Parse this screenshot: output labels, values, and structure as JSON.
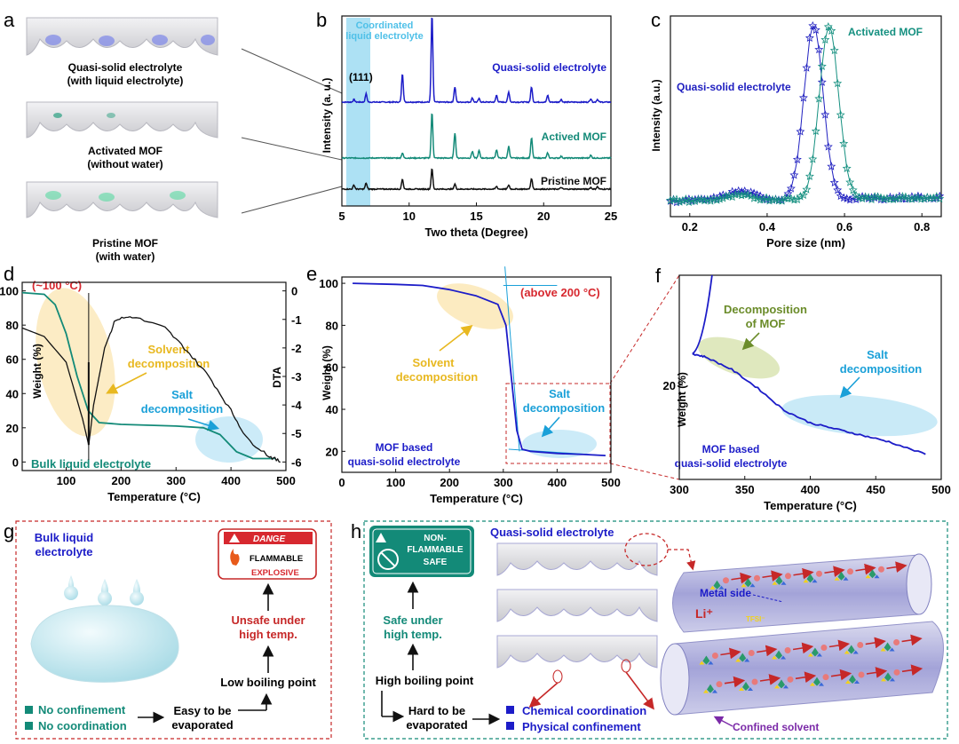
{
  "panels": {
    "a": {
      "letter": "a",
      "labels": [
        [
          "Quasi-solid electrolyte",
          "(with liquid electrolyte)"
        ],
        [
          "Activated MOF",
          "(without water)"
        ],
        [
          "Pristine MOF",
          "(with water)"
        ]
      ]
    },
    "b": {
      "letter": "b",
      "coord_label": [
        "Coordinated",
        "liquid electrolyte"
      ],
      "peak_label": "(111)"
    },
    "c": {
      "letter": "c"
    },
    "d": {
      "letter": "d",
      "temp_callout": "(~100 °C)",
      "solvent": [
        "Solvent",
        "decomposition"
      ],
      "salt": [
        "Salt",
        "decomposition"
      ],
      "bulk": "Bulk liquid electrolyte"
    },
    "e": {
      "letter": "e",
      "temp_callout": "(above 200 °C)",
      "solvent": [
        "Solvent",
        "decomposition"
      ],
      "salt": [
        "Salt",
        "decomposition"
      ],
      "mof": [
        "MOF based",
        "quasi-solid electrolyte"
      ]
    },
    "f": {
      "letter": "f",
      "mof_dec": [
        "Decomposition",
        "of MOF"
      ],
      "salt": [
        "Salt",
        "decomposition"
      ],
      "mof": [
        "MOF based",
        "quasi-solid electrolyte"
      ]
    },
    "g": {
      "letter": "g",
      "title": [
        "Bulk liquid",
        "electrolyte"
      ],
      "danger": "DANGE",
      "flammable": "FLAMMABLE",
      "explosive": "EXPLOSIVE",
      "unsafe": [
        "Unsafe under",
        "high temp."
      ],
      "low_bp": "Low boiling point",
      "easy": [
        "Easy to be",
        "evaporated"
      ],
      "bullets": [
        "No confinement",
        "No coordination"
      ]
    },
    "h": {
      "letter": "h",
      "badge": [
        "NON-",
        "FLAMMABLE",
        "SAFE"
      ],
      "safe": [
        "Safe under",
        "high temp."
      ],
      "high_bp": "High boiling point",
      "hard": [
        "Hard to be",
        "evaporated"
      ],
      "bullets": [
        "Chemical coordination",
        "Physical confinement"
      ],
      "title": "Quasi-solid electrolyte",
      "metal": "Metal side",
      "li": "Li⁺",
      "tfsi": "TFSI⁻",
      "confined": "Confined solvent"
    }
  },
  "chart_data": [
    {
      "id": "b",
      "type": "line",
      "title": "",
      "xlabel": "Two theta (Degree)",
      "ylabel": "Intensity (a. u.)",
      "xlim": [
        5,
        25
      ],
      "xticks": [
        5,
        10,
        15,
        20,
        25
      ],
      "series": [
        {
          "name": "Quasi-solid electrolyte",
          "color": "#1c1cc8",
          "peaks": [
            [
              5.9,
              0.08
            ],
            [
              6.8,
              0.25
            ],
            [
              9.5,
              0.85
            ],
            [
              11.7,
              2.6
            ],
            [
              13.4,
              0.45
            ],
            [
              14.7,
              0.12
            ],
            [
              15.2,
              0.1
            ],
            [
              16.5,
              0.2
            ],
            [
              17.4,
              0.3
            ],
            [
              19.1,
              0.45
            ],
            [
              20.3,
              0.2
            ],
            [
              21.3,
              0.08
            ],
            [
              23.5,
              0.1
            ],
            [
              24.0,
              0.08
            ]
          ]
        },
        {
          "name": "Actived MOF",
          "color": "#138a78",
          "peaks": [
            [
              9.5,
              0.15
            ],
            [
              11.7,
              1.35
            ],
            [
              13.4,
              0.75
            ],
            [
              14.7,
              0.2
            ],
            [
              15.2,
              0.22
            ],
            [
              16.5,
              0.25
            ],
            [
              17.4,
              0.35
            ],
            [
              19.1,
              0.6
            ],
            [
              20.3,
              0.15
            ],
            [
              21.3,
              0.05
            ],
            [
              23.5,
              0.08
            ]
          ]
        },
        {
          "name": "Pristine MOF",
          "color": "#111111",
          "peaks": [
            [
              5.9,
              0.12
            ],
            [
              6.8,
              0.18
            ],
            [
              9.5,
              0.3
            ],
            [
              11.7,
              0.6
            ],
            [
              13.4,
              0.15
            ],
            [
              16.5,
              0.08
            ],
            [
              17.4,
              0.12
            ],
            [
              19.1,
              0.32
            ],
            [
              21.3,
              0.05
            ],
            [
              23.5,
              0.05
            ],
            [
              24.0,
              0.07
            ]
          ]
        }
      ]
    },
    {
      "id": "c",
      "type": "line",
      "title": "",
      "xlabel": "Pore size (nm)",
      "ylabel": "Intensity (a.u.)",
      "xlim": [
        0.15,
        0.85
      ],
      "xticks": [
        0.2,
        0.4,
        0.6,
        0.8
      ],
      "series": [
        {
          "name": "Quasi-solid electrolyte",
          "color": "#2020c0",
          "peak": 0.52
        },
        {
          "name": "Activated MOF",
          "color": "#159080",
          "peak": 0.56
        }
      ]
    },
    {
      "id": "d",
      "type": "line",
      "title": "",
      "xlabel": "Temperature (°C)",
      "ylabel": "Weight (%)",
      "y2label": "DTA",
      "xlim": [
        20,
        500
      ],
      "xticks": [
        100,
        200,
        300,
        400,
        500
      ],
      "ylim": [
        -5,
        105
      ],
      "yticks": [
        0,
        20,
        40,
        60,
        80,
        100
      ],
      "y2lim": [
        -6.3,
        0.3
      ],
      "y2ticks": [
        0,
        -1,
        -2,
        -3,
        -4,
        -5,
        -6
      ],
      "series": [
        {
          "name": "Weight",
          "color": "#138a78",
          "x": [
            20,
            60,
            80,
            100,
            120,
            140,
            160,
            200,
            300,
            350,
            380,
            410,
            440,
            480
          ],
          "y": [
            99,
            98,
            92,
            75,
            50,
            30,
            23,
            22,
            21,
            20,
            16,
            6,
            2,
            2
          ]
        },
        {
          "name": "DTA",
          "color": "#111111",
          "x": [
            20,
            60,
            100,
            130,
            141,
            150,
            170,
            190,
            220,
            280,
            320,
            360,
            400,
            430,
            470,
            490
          ],
          "y": [
            -1.3,
            -1.6,
            -2.5,
            -4.5,
            -5.4,
            -4.0,
            -2.0,
            -1.0,
            -0.9,
            -1.3,
            -2.1,
            -3.0,
            -4.2,
            -5.2,
            -5.8,
            -6.0
          ]
        }
      ]
    },
    {
      "id": "e",
      "type": "line",
      "title": "",
      "xlabel": "Temperature (°C)",
      "ylabel": "Weight (%)",
      "xlim": [
        0,
        500
      ],
      "xticks": [
        0,
        100,
        200,
        300,
        400,
        500
      ],
      "ylim": [
        10,
        103
      ],
      "yticks": [
        20,
        40,
        60,
        80,
        100
      ],
      "series": [
        {
          "name": "Weight",
          "color": "#1c1cc8",
          "x": [
            20,
            100,
            150,
            200,
            250,
            290,
            305,
            315,
            325,
            335,
            350,
            400,
            450,
            490
          ],
          "y": [
            100,
            99.5,
            99,
            97,
            94,
            90,
            80,
            55,
            30,
            21,
            20,
            19,
            18.5,
            18
          ]
        }
      ]
    },
    {
      "id": "f",
      "type": "line",
      "title": "",
      "xlabel": "Temperature (°C)",
      "ylabel": "Weight (%)",
      "xlim": [
        300,
        500
      ],
      "xticks": [
        300,
        350,
        400,
        450,
        500
      ],
      "ylim": [
        17,
        23.5
      ],
      "yticks": [
        20
      ],
      "series": [
        {
          "name": "Weight",
          "color": "#1c1cc8",
          "x": [
            310,
            320,
            340,
            360,
            380,
            400,
            420,
            440,
            460,
            488
          ],
          "y": [
            21.0,
            20.9,
            20.5,
            19.9,
            19.2,
            18.8,
            18.6,
            18.4,
            18.2,
            17.8
          ]
        }
      ]
    }
  ]
}
